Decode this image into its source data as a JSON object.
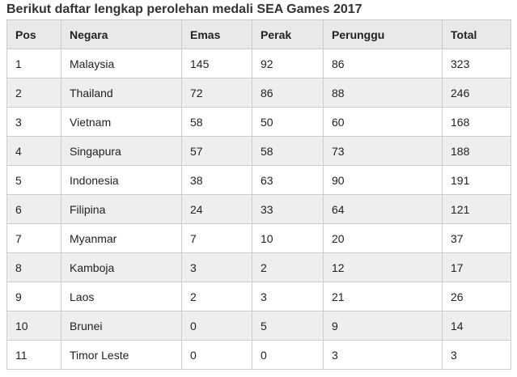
{
  "title": "Berikut daftar lengkap perolehan medali SEA Games 2017",
  "headers": [
    "Pos",
    "Negara",
    "Emas",
    "Perak",
    "Perunggu",
    "Total"
  ],
  "rows": [
    [
      "1",
      "Malaysia",
      "145",
      "92",
      "86",
      "323"
    ],
    [
      "2",
      "Thailand",
      "72",
      "86",
      "88",
      "246"
    ],
    [
      "3",
      "Vietnam",
      "58",
      "50",
      "60",
      "168"
    ],
    [
      "4",
      "Singapura",
      "57",
      "58",
      "73",
      "188"
    ],
    [
      "5",
      "Indonesia",
      "38",
      "63",
      "90",
      "191"
    ],
    [
      "6",
      "Filipina",
      "24",
      "33",
      "64",
      "121"
    ],
    [
      "7",
      "Myanmar",
      "7",
      "10",
      "20",
      "37"
    ],
    [
      "8",
      "Kamboja",
      "3",
      "2",
      "12",
      "17"
    ],
    [
      "9",
      "Laos",
      "2",
      "3",
      "21",
      "26"
    ],
    [
      "10",
      "Brunei",
      "0",
      "5",
      "9",
      "14"
    ],
    [
      "11",
      "Timor Leste",
      "0",
      "0",
      "3",
      "3"
    ]
  ],
  "colors": {
    "header_bg": "#e9e9e9",
    "stripe_bg": "#eeeeee",
    "border": "#cccccc"
  }
}
